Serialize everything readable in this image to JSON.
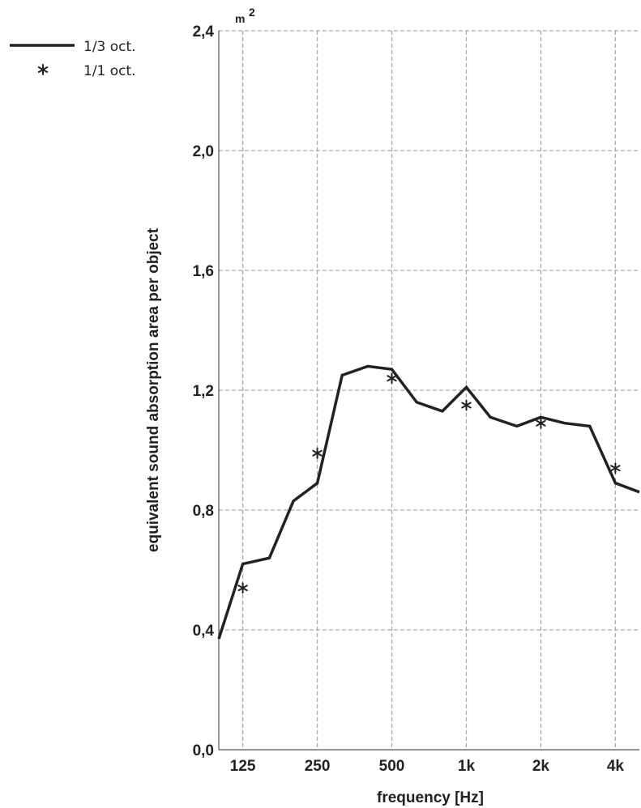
{
  "chart_data": {
    "type": "line",
    "xlabel": "frequency [Hz]",
    "ylabel": "equivalent sound absorption area per object",
    "y_unit": "m",
    "y_unit_exponent": "2",
    "xscale": "log",
    "xlim": [
      100,
      5000
    ],
    "ylim": [
      0,
      2.4
    ],
    "x_ticks": [
      {
        "value": 125,
        "label": "125"
      },
      {
        "value": 250,
        "label": "250"
      },
      {
        "value": 500,
        "label": "500"
      },
      {
        "value": 1000,
        "label": "1k"
      },
      {
        "value": 2000,
        "label": "2k"
      },
      {
        "value": 4000,
        "label": "4k"
      }
    ],
    "y_ticks": [
      {
        "value": 0.0,
        "label": "0,0"
      },
      {
        "value": 0.4,
        "label": "0,4"
      },
      {
        "value": 0.8,
        "label": "0,8"
      },
      {
        "value": 1.2,
        "label": "1,2"
      },
      {
        "value": 1.6,
        "label": "1,6"
      },
      {
        "value": 2.0,
        "label": "2,0"
      },
      {
        "value": 2.4,
        "label": "2,4"
      }
    ],
    "grid": true,
    "legend_position": "top-left",
    "series": [
      {
        "name": "1/3 oct.",
        "style": "line",
        "color": "#222222",
        "x": [
          100,
          125,
          160,
          200,
          250,
          315,
          400,
          500,
          630,
          800,
          1000,
          1250,
          1600,
          2000,
          2500,
          3150,
          4000,
          5000
        ],
        "values": [
          0.37,
          0.62,
          0.64,
          0.83,
          0.89,
          1.25,
          1.28,
          1.27,
          1.16,
          1.13,
          1.21,
          1.11,
          1.08,
          1.11,
          1.09,
          1.08,
          0.89,
          0.86
        ]
      },
      {
        "name": "1/1 oct.",
        "style": "marker",
        "marker": "asterisk",
        "color": "#222222",
        "x": [
          125,
          250,
          500,
          1000,
          2000,
          4000
        ],
        "values": [
          0.54,
          0.99,
          1.24,
          1.15,
          1.09,
          0.94
        ]
      }
    ]
  }
}
